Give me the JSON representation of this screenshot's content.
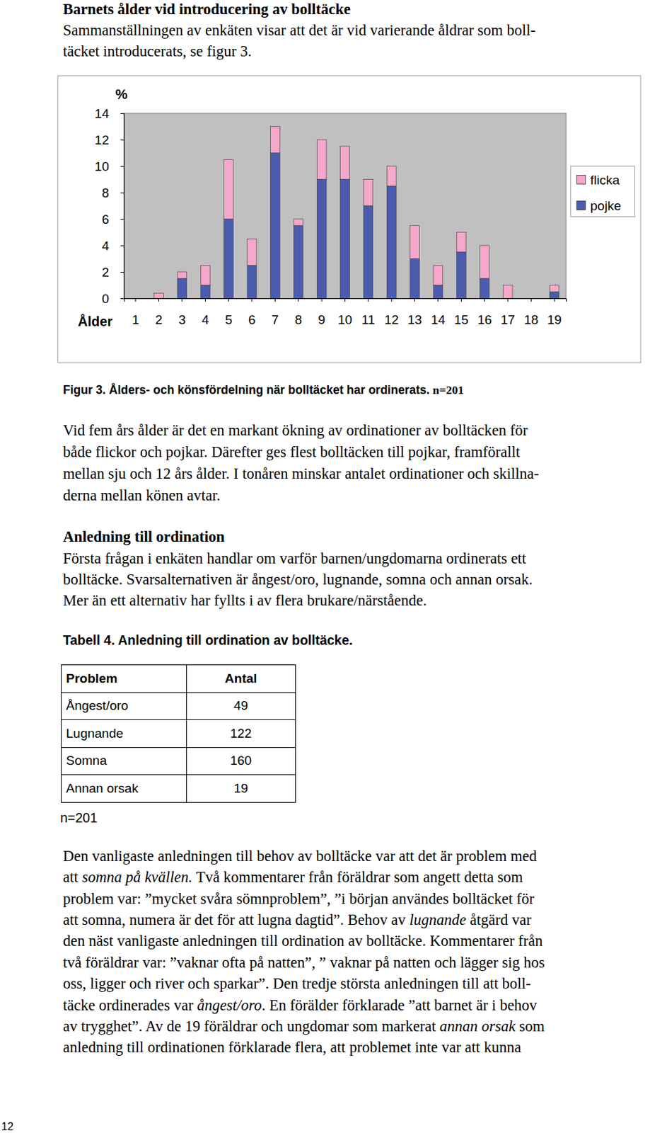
{
  "document": {
    "heading": "Barnets ålder vid introducering av bolltäcke",
    "intro_lines": [
      "Sammanställningen av enkäten visar att det är vid varierande åldrar som boll-",
      "täcket introducerats, se figur 3."
    ],
    "figure_caption": [
      "Figur 3. Ålders- och könsfördelning när bolltäcket har ordinerats.",
      "n=201"
    ],
    "paragraph1_lines": [
      "Vid fem års ålder är det en markant ökning av ordinationer av bolltäcken för",
      "både flickor och pojkar. Därefter ges flest bolltäcken till pojkar, framförallt",
      "mellan sju och 12 års ålder. I tonåren minskar antalet ordinationer och skillna-",
      "derna mellan könen avtar."
    ],
    "section_heading": "Anledning till ordination",
    "paragraph2_lines": [
      "Första frågan i enkäten handlar om varför barnen/ungdomarna ordinerats ett",
      "bolltäcke. Svarsalternativen är ångest/oro, lugnande, somna och annan orsak.",
      "Mer än ett alternativ har fyllts i av flera brukare/närstående."
    ],
    "table_caption": "Tabell 4. Anledning till ordination av bolltäcke.",
    "table": {
      "header": [
        "Problem",
        "Antal"
      ],
      "rows": [
        [
          "Ångest/oro",
          49
        ],
        [
          "Lugnande",
          122
        ],
        [
          "Somna",
          160
        ],
        [
          "Annan orsak",
          19
        ]
      ]
    },
    "table_note": "n=201",
    "paragraph3_lines": [
      "Den vanligaste anledningen till behov av bolltäcke var att det är problem med",
      [
        "att ",
        {
          "em": "somna på kvällen."
        },
        " Två kommentarer från föräldrar som angett detta som"
      ],
      "problem var: ”mycket svåra sömnproblem”, ”i början användes bolltäcket för",
      [
        "att somna, numera är det för att lugna dagtid”. Behov av ",
        {
          "em": "lugnande"
        },
        " åtgärd var"
      ],
      "den näst vanligaste anledningen till ordination av bolltäcke. Kommentarer från",
      "två föräldrar var: ”vaknar ofta på natten”, ” vaknar på natten och lägger sig hos",
      "oss, ligger och river och sparkar”. Den tredje största anledningen till att boll-",
      [
        "täcke ordinerades var ",
        {
          "em": "ångest/oro"
        },
        ". En förälder förklarade ”att barnet är i behov"
      ],
      [
        "av trygghet”. Av de 19 föräldrar och ungdomar som markerat ",
        {
          "em": "annan orsak"
        },
        " som"
      ],
      "anledning till ordinationen förklarade flera, att problemet inte var att kunna"
    ],
    "page_number": "12"
  },
  "chart_data": {
    "type": "bar",
    "stacked": true,
    "y_label": "%",
    "x_label": "Ålder",
    "categories": [
      1,
      2,
      3,
      4,
      5,
      6,
      7,
      8,
      9,
      10,
      11,
      12,
      13,
      14,
      15,
      16,
      17,
      18,
      19
    ],
    "series": [
      {
        "name": "pojke",
        "color": "#4b5cae",
        "values": [
          0,
          0,
          1.5,
          1,
          6,
          2.5,
          11,
          5.5,
          9,
          9,
          7,
          8.5,
          3,
          1,
          3.5,
          1.5,
          0,
          0,
          0.5
        ]
      },
      {
        "name": "flicka",
        "color": "#f5a8cb",
        "values": [
          0,
          0.4,
          0.5,
          1.5,
          4.5,
          2,
          2,
          0.5,
          3,
          2.5,
          2,
          1.5,
          2.5,
          1.5,
          1.5,
          2.5,
          1,
          0,
          0.5
        ]
      }
    ],
    "ylim": [
      0,
      14
    ],
    "yticks": [
      0,
      2,
      4,
      6,
      8,
      10,
      12,
      14
    ],
    "grid": false,
    "legend": "right"
  }
}
